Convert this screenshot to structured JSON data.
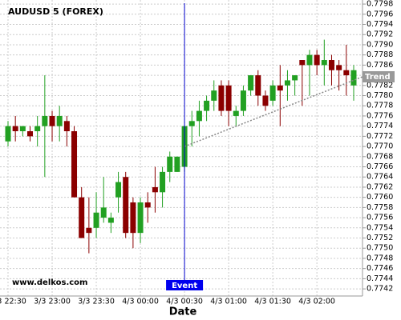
{
  "chart_data": {
    "type": "candlestick",
    "title": "AUDUSD 5 (FOREX)",
    "watermark": "www.delkos.com",
    "x_label": "Date",
    "categories": [
      "3/3 22:30",
      null,
      null,
      null,
      null,
      null,
      "3/3 23:00",
      null,
      null,
      null,
      null,
      null,
      "3/3 23:30",
      null,
      null,
      null,
      null,
      null,
      "4/3 00:00",
      null,
      null,
      null,
      null,
      null,
      "4/3 00:30",
      null,
      null,
      null,
      null,
      null,
      "4/3 01:00",
      null,
      null,
      null,
      null,
      null,
      "4/3 01:30",
      null,
      null,
      null,
      null,
      null,
      "4/3 02:00",
      null,
      null,
      null,
      null,
      null
    ],
    "series": [
      {
        "up_color": "#22a022",
        "down_color": "#8b0000",
        "open": [
          0.7771,
          0.7774,
          0.7773,
          0.7773,
          0.7773,
          0.7774,
          0.7776,
          0.7774,
          0.7775,
          0.7773,
          0.776,
          0.7754,
          0.7754,
          0.7756,
          0.7755,
          0.776,
          0.7764,
          0.7759,
          0.7753,
          0.7759,
          0.7762,
          0.7761,
          0.7765,
          0.7765,
          0.7766,
          0.7774,
          0.7775,
          0.7777,
          0.7779,
          0.7782,
          0.7782,
          0.7776,
          0.7777,
          0.7781,
          0.7784,
          0.778,
          0.7779,
          0.7782,
          0.7782,
          0.7783,
          0.7787,
          0.7786,
          0.7788,
          0.7786,
          0.7787,
          0.7786,
          0.7785,
          0.7782
        ],
        "high": [
          0.7775,
          0.7776,
          0.7774,
          0.7774,
          0.7776,
          0.7784,
          0.7777,
          0.7778,
          0.7776,
          0.7774,
          0.7762,
          0.776,
          0.7761,
          0.7764,
          0.7757,
          0.7765,
          0.7765,
          0.776,
          0.776,
          0.7761,
          0.7766,
          0.7766,
          0.7769,
          0.7768,
          0.7774,
          0.7777,
          0.7779,
          0.778,
          0.7783,
          0.7783,
          0.7783,
          0.7778,
          0.7782,
          0.7784,
          0.7785,
          0.7781,
          0.7783,
          0.7786,
          0.7785,
          0.7784,
          0.7787,
          0.7789,
          0.7789,
          0.7791,
          0.7788,
          0.7787,
          0.779,
          0.7786
        ],
        "low": [
          0.777,
          0.7771,
          0.7772,
          0.7771,
          0.777,
          0.7764,
          0.7771,
          0.7771,
          0.777,
          0.776,
          0.7752,
          0.7749,
          0.7752,
          0.7755,
          0.7753,
          0.7757,
          0.7752,
          0.775,
          0.7751,
          0.7755,
          0.7757,
          0.7758,
          0.7763,
          0.7765,
          0.7765,
          0.777,
          0.7772,
          0.7775,
          0.7777,
          0.7776,
          0.7774,
          0.7774,
          0.7776,
          0.778,
          0.7778,
          0.7777,
          0.7778,
          0.7774,
          0.7779,
          0.778,
          0.7778,
          0.778,
          0.7784,
          0.7782,
          0.7782,
          0.7781,
          0.778,
          0.7779
        ],
        "close": [
          0.7774,
          0.7773,
          0.7774,
          0.7772,
          0.7774,
          0.7776,
          0.7774,
          0.7776,
          0.7773,
          0.776,
          0.7752,
          0.7753,
          0.7757,
          0.7758,
          0.7756,
          0.7763,
          0.7753,
          0.7753,
          0.7759,
          0.7758,
          0.7761,
          0.7765,
          0.7768,
          0.7768,
          0.7774,
          0.7775,
          0.7777,
          0.7779,
          0.7781,
          0.7777,
          0.7777,
          0.7777,
          0.7781,
          0.7784,
          0.778,
          0.7778,
          0.7782,
          0.7781,
          0.7783,
          0.7784,
          0.7786,
          0.7788,
          0.7786,
          0.7787,
          0.7785,
          0.7785,
          0.7784,
          0.7785
        ]
      }
    ],
    "ylim": [
      0.77406,
      0.77988
    ],
    "yticks": [
      0.7742,
      0.7744,
      0.7746,
      0.7748,
      {
        "value": 0.775,
        "label": "0.7750"
      },
      0.7752,
      0.7754,
      0.7756,
      0.7758,
      {
        "value": 0.776,
        "label": "0.7760"
      },
      0.7762,
      0.7764,
      0.7766,
      0.7768,
      {
        "value": 0.777,
        "label": "0.7770"
      },
      0.7772,
      0.7774,
      0.7776,
      0.7778,
      {
        "value": 0.778,
        "label": "0.7780"
      },
      0.7782,
      0.7784,
      0.7786,
      0.7788,
      {
        "value": 0.779,
        "label": "0.7790"
      },
      0.7792,
      0.7794,
      0.7796,
      0.7798
    ],
    "grid": true,
    "event": {
      "label": "Event",
      "x": 24
    },
    "trend_line": {
      "label": "Trend",
      "start": {
        "x": 24,
        "y": 0.777
      },
      "end": {
        "x": 48.2,
        "y": 0.77837
      }
    }
  }
}
